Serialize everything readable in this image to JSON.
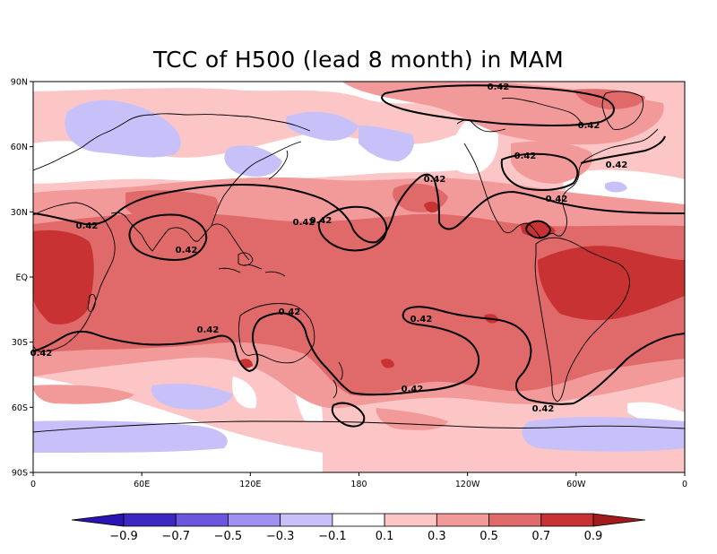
{
  "title": "TCC of H500 (lead 8 month) in MAM",
  "map": {
    "lat_ticks": [
      "90N",
      "60N",
      "30N",
      "EQ",
      "30S",
      "60S",
      "90S"
    ],
    "lon_ticks": [
      "0",
      "60E",
      "120E",
      "180",
      "120W",
      "60W",
      "0"
    ],
    "contour_level_label": "0.42",
    "contour_labels": [
      {
        "name": "arctic-north",
        "text": "0.42"
      },
      {
        "name": "canada-east",
        "text": "0.42"
      },
      {
        "name": "hudson",
        "text": "0.42"
      },
      {
        "name": "labrador",
        "text": "0.42"
      },
      {
        "name": "atlantic",
        "text": "0.42"
      },
      {
        "name": "central-pacific-north",
        "text": "0.42"
      },
      {
        "name": "pacific-30n-a",
        "text": "0.42"
      },
      {
        "name": "pacific-30n-b",
        "text": "0.42"
      },
      {
        "name": "africa-30n",
        "text": "0.42"
      },
      {
        "name": "india",
        "text": "0.42"
      },
      {
        "name": "australia-north",
        "text": "0.42"
      },
      {
        "name": "indian-ocean-south",
        "text": "0.42"
      },
      {
        "name": "left-edge-30s",
        "text": "0.42"
      },
      {
        "name": "south-pacific",
        "text": "0.42"
      },
      {
        "name": "southern-ocean",
        "text": "0.42"
      },
      {
        "name": "south-america-south",
        "text": "0.42"
      }
    ]
  },
  "colorbar": {
    "labels": [
      "−0.9",
      "−0.7",
      "−0.5",
      "−0.3",
      "−0.1",
      "0.1",
      "0.3",
      "0.5",
      "0.7",
      "0.9"
    ],
    "colors": [
      "#2a14b3",
      "#3c28c0",
      "#6b57de",
      "#a090f2",
      "#c8c0f8",
      "#ffffff",
      "#fcc6c6",
      "#f29a9a",
      "#e06a6a",
      "#c83232",
      "#a01c1c"
    ]
  }
}
